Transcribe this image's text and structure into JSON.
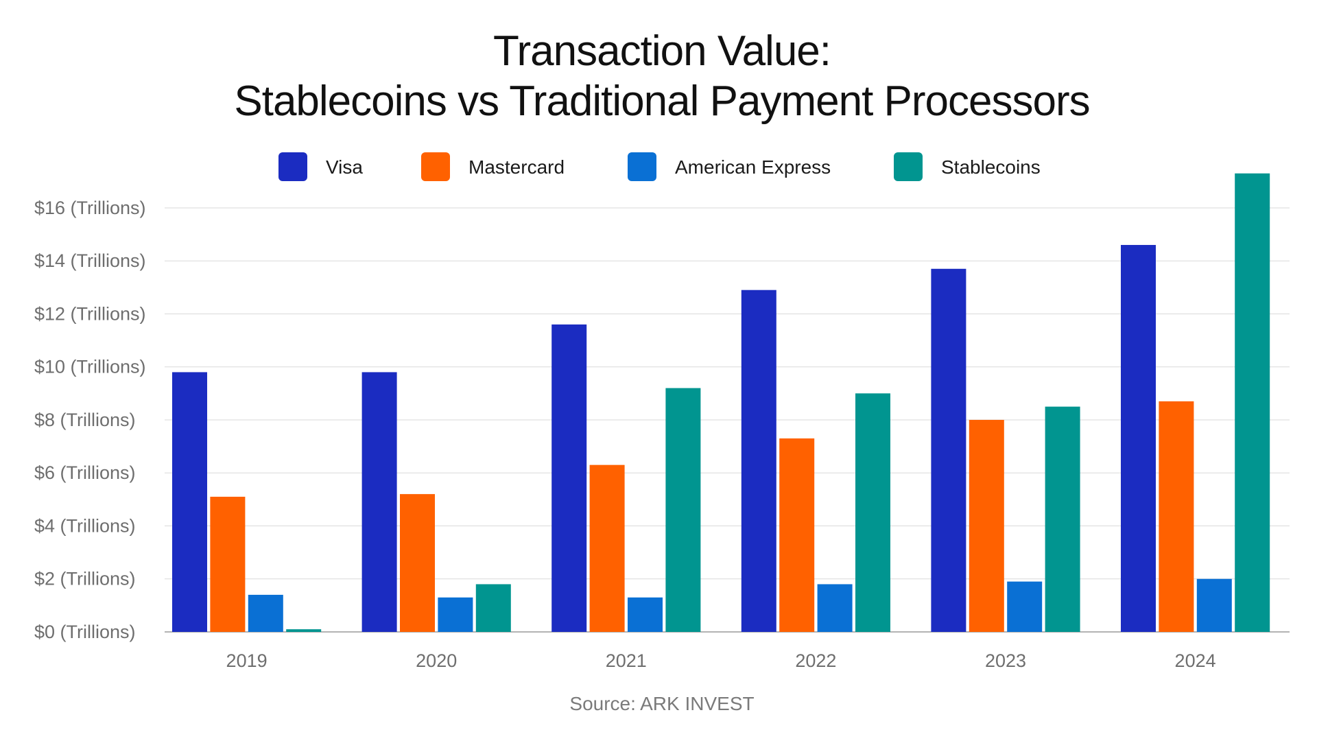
{
  "chart_data": {
    "type": "bar",
    "title_line1": "Transaction Value:",
    "title_line2": "Stablecoins vs Traditional Payment Processors",
    "source": "Source: ARK INVEST",
    "categories": [
      "2019",
      "2020",
      "2021",
      "2022",
      "2023",
      "2024"
    ],
    "series": [
      {
        "name": "Visa",
        "color": "#1b2cc1",
        "values": [
          9.8,
          9.8,
          11.6,
          12.9,
          13.7,
          14.6
        ]
      },
      {
        "name": "Mastercard",
        "color": "#ff6100",
        "values": [
          5.1,
          5.2,
          6.3,
          7.3,
          8.0,
          8.7
        ]
      },
      {
        "name": "American Express",
        "color": "#0a70d4",
        "values": [
          1.4,
          1.3,
          1.3,
          1.8,
          1.9,
          2.0
        ]
      },
      {
        "name": "Stablecoins",
        "color": "#019590",
        "values": [
          0.1,
          1.8,
          9.2,
          9.0,
          8.5,
          17.3
        ]
      }
    ],
    "yticks": [
      {
        "value": 0,
        "label": "$0 (Trillions)"
      },
      {
        "value": 2,
        "label": "$2 (Trillions)"
      },
      {
        "value": 4,
        "label": "$4 (Trillions)"
      },
      {
        "value": 6,
        "label": "$6 (Trillions)"
      },
      {
        "value": 8,
        "label": "$8 (Trillions)"
      },
      {
        "value": 10,
        "label": "$10 (Trillions)"
      },
      {
        "value": 12,
        "label": "$12 (Trillions)"
      },
      {
        "value": 14,
        "label": "$14 (Trillions)"
      },
      {
        "value": 16,
        "label": "$16 (Trillions)"
      }
    ],
    "ylim": [
      0,
      17.5
    ],
    "grid": true,
    "legend_position": "top-center"
  }
}
